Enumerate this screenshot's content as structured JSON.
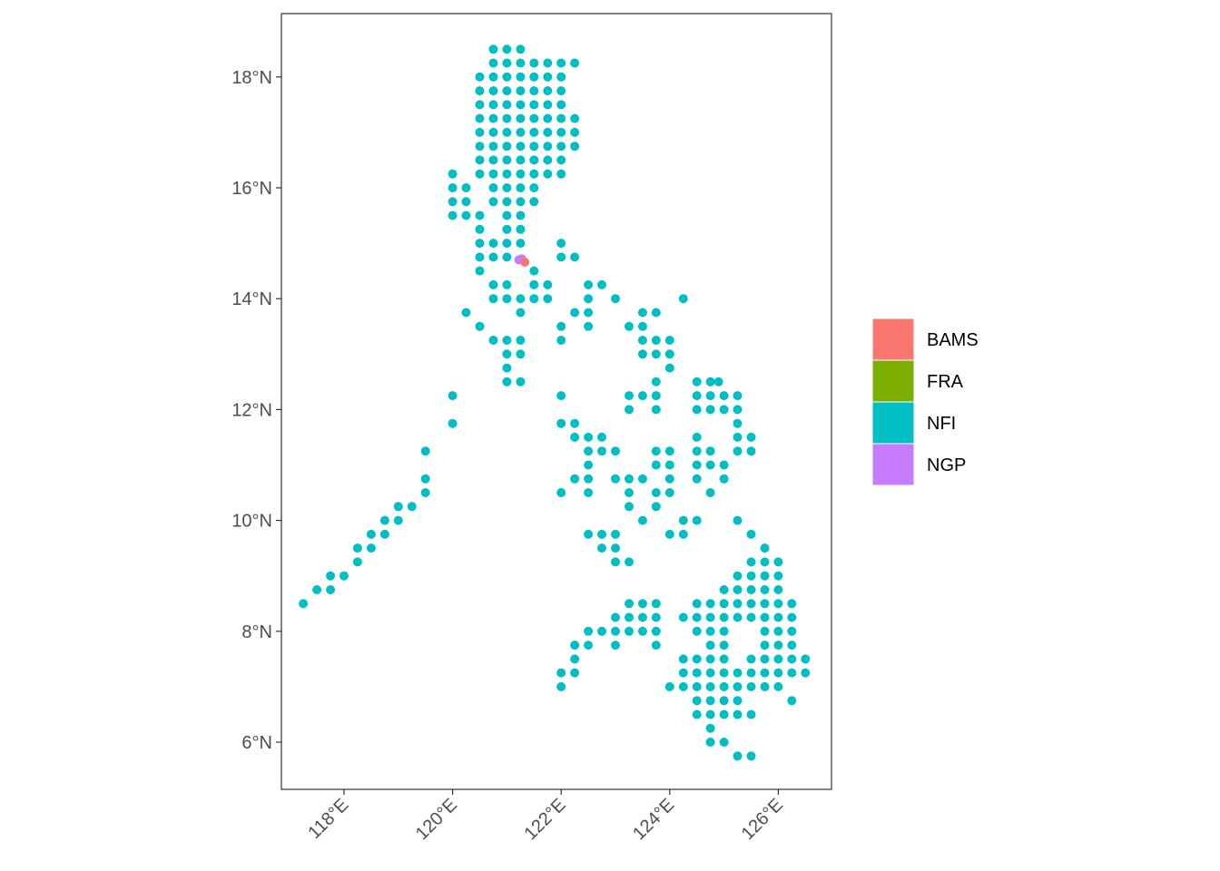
{
  "chart_data": {
    "type": "scatter",
    "title": "",
    "xlabel": "",
    "ylabel": "",
    "xlim": [
      116.8,
      127.0
    ],
    "ylim": [
      5.2,
      19.1
    ],
    "grid": false,
    "legend_position": "right",
    "x_ticks": [
      {
        "value": 118,
        "label": "118°E"
      },
      {
        "value": 120,
        "label": "120°E"
      },
      {
        "value": 122,
        "label": "122°E"
      },
      {
        "value": 124,
        "label": "124°E"
      },
      {
        "value": 126,
        "label": "126°E"
      }
    ],
    "y_ticks": [
      {
        "value": 6,
        "label": "6°N"
      },
      {
        "value": 8,
        "label": "8°N"
      },
      {
        "value": 10,
        "label": "10°N"
      },
      {
        "value": 12,
        "label": "12°N"
      },
      {
        "value": 14,
        "label": "14°N"
      },
      {
        "value": 16,
        "label": "16°N"
      },
      {
        "value": 18,
        "label": "18°N"
      }
    ],
    "legend": [
      {
        "label": "BAMS",
        "color": "#F8766D"
      },
      {
        "label": "FRA",
        "color": "#7CAE00"
      },
      {
        "label": "NFI",
        "color": "#00BFC4"
      },
      {
        "label": "NGP",
        "color": "#C77CFF"
      }
    ],
    "grid_points_note": "regular 0.25 degree grid of plot locations",
    "series": [
      {
        "name": "NFI",
        "color": "#00BFC4",
        "rows": [
          {
            "lat": 18.5,
            "lons": [
              120.75,
              121.0,
              121.25
            ]
          },
          {
            "lat": 18.25,
            "lons": [
              120.75,
              121.0,
              121.25,
              121.5,
              121.75,
              122.0,
              122.25
            ]
          },
          {
            "lat": 18.0,
            "lons": [
              120.5,
              120.75,
              121.0,
              121.25,
              121.5,
              121.75,
              122.0
            ]
          },
          {
            "lat": 17.75,
            "lons": [
              120.5,
              120.75,
              121.0,
              121.25,
              121.5,
              121.75,
              122.0
            ]
          },
          {
            "lat": 17.5,
            "lons": [
              120.5,
              120.75,
              121.0,
              121.25,
              121.5,
              121.75,
              122.0
            ]
          },
          {
            "lat": 17.25,
            "lons": [
              120.5,
              120.75,
              121.0,
              121.25,
              121.5,
              121.75,
              122.0,
              122.25
            ]
          },
          {
            "lat": 17.0,
            "lons": [
              120.5,
              120.75,
              121.0,
              121.25,
              121.5,
              121.75,
              122.0,
              122.25
            ]
          },
          {
            "lat": 16.75,
            "lons": [
              120.5,
              120.75,
              121.0,
              121.25,
              121.5,
              121.75,
              122.0,
              122.25
            ]
          },
          {
            "lat": 16.5,
            "lons": [
              120.5,
              120.75,
              121.0,
              121.25,
              121.5,
              121.75,
              122.0
            ]
          },
          {
            "lat": 16.25,
            "lons": [
              120.0,
              120.5,
              120.75,
              121.0,
              121.25,
              121.5,
              121.75,
              122.0
            ]
          },
          {
            "lat": 16.0,
            "lons": [
              120.0,
              120.25,
              120.75,
              121.0,
              121.25,
              121.5
            ]
          },
          {
            "lat": 15.75,
            "lons": [
              120.0,
              120.25,
              120.75,
              121.0,
              121.25,
              121.5
            ]
          },
          {
            "lat": 15.5,
            "lons": [
              120.0,
              120.25,
              120.5,
              121.0,
              121.25
            ]
          },
          {
            "lat": 15.25,
            "lons": [
              120.5,
              121.0,
              121.25
            ]
          },
          {
            "lat": 15.0,
            "lons": [
              120.5,
              120.75,
              121.0,
              121.25,
              122.0
            ]
          },
          {
            "lat": 14.75,
            "lons": [
              120.5,
              120.75,
              121.0,
              122.0,
              122.25
            ]
          },
          {
            "lat": 14.5,
            "lons": [
              120.5,
              121.5
            ]
          },
          {
            "lat": 14.25,
            "lons": [
              120.75,
              121.0,
              121.5,
              121.75,
              122.5,
              122.75
            ]
          },
          {
            "lat": 14.0,
            "lons": [
              120.75,
              121.0,
              121.25,
              121.5,
              121.75,
              122.5,
              123.0,
              124.25
            ]
          },
          {
            "lat": 13.75,
            "lons": [
              120.25,
              121.25,
              122.25,
              122.5,
              123.5,
              123.75
            ]
          },
          {
            "lat": 13.5,
            "lons": [
              120.5,
              122.0,
              122.5,
              123.25,
              123.5
            ]
          },
          {
            "lat": 13.25,
            "lons": [
              120.75,
              121.0,
              121.25,
              122.0,
              123.5,
              123.75,
              124.0
            ]
          },
          {
            "lat": 13.0,
            "lons": [
              121.0,
              121.25,
              123.5,
              123.75,
              124.0
            ]
          },
          {
            "lat": 12.75,
            "lons": [
              121.0,
              124.0
            ]
          },
          {
            "lat": 12.5,
            "lons": [
              121.0,
              121.25,
              123.75,
              124.5,
              124.75,
              124.9
            ]
          },
          {
            "lat": 12.25,
            "lons": [
              120.0,
              122.0,
              123.25,
              123.5,
              123.75,
              124.5,
              124.75,
              125.0,
              125.25
            ]
          },
          {
            "lat": 12.0,
            "lons": [
              123.25,
              123.75,
              124.5,
              124.75,
              125.0,
              125.25
            ]
          },
          {
            "lat": 11.75,
            "lons": [
              120.0,
              122.0,
              122.25,
              125.25
            ]
          },
          {
            "lat": 11.5,
            "lons": [
              122.25,
              122.5,
              122.75,
              124.5,
              125.25,
              125.5
            ]
          },
          {
            "lat": 11.25,
            "lons": [
              119.5,
              122.5,
              122.75,
              123.0,
              123.75,
              124.0,
              124.5,
              124.75,
              125.25,
              125.5
            ]
          },
          {
            "lat": 11.0,
            "lons": [
              122.5,
              123.75,
              124.0,
              124.5,
              124.75,
              125.0
            ]
          },
          {
            "lat": 10.75,
            "lons": [
              119.5,
              122.25,
              122.5,
              123.0,
              123.25,
              123.5,
              124.0,
              124.5,
              125.0
            ]
          },
          {
            "lat": 10.5,
            "lons": [
              119.5,
              122.0,
              122.5,
              123.25,
              123.75,
              124.0,
              124.75
            ]
          },
          {
            "lat": 10.25,
            "lons": [
              119.0,
              119.25,
              123.25,
              123.75
            ]
          },
          {
            "lat": 10.0,
            "lons": [
              118.75,
              119.0,
              123.5,
              124.25,
              124.5,
              125.25
            ]
          },
          {
            "lat": 9.75,
            "lons": [
              118.5,
              118.75,
              122.5,
              122.75,
              123.0,
              124.0,
              124.25,
              125.5
            ]
          },
          {
            "lat": 9.5,
            "lons": [
              118.25,
              118.5,
              122.75,
              123.0,
              125.75
            ]
          },
          {
            "lat": 9.25,
            "lons": [
              118.25,
              123.0,
              123.25,
              125.5,
              125.75,
              126.0
            ]
          },
          {
            "lat": 9.0,
            "lons": [
              117.75,
              118.0,
              125.25,
              125.5,
              125.75,
              126.0
            ]
          },
          {
            "lat": 8.75,
            "lons": [
              117.5,
              117.75,
              125.0,
              125.25,
              125.5,
              125.75,
              126.0
            ]
          },
          {
            "lat": 8.5,
            "lons": [
              117.25,
              123.25,
              123.5,
              123.75,
              124.5,
              124.75,
              125.0,
              125.25,
              125.5,
              125.75,
              126.0,
              126.25
            ]
          },
          {
            "lat": 8.25,
            "lons": [
              123.0,
              123.25,
              123.5,
              123.75,
              124.25,
              124.5,
              124.75,
              125.0,
              125.25,
              125.5,
              125.75,
              126.0,
              126.25
            ]
          },
          {
            "lat": 8.0,
            "lons": [
              122.5,
              122.75,
              123.0,
              123.25,
              123.5,
              123.75,
              124.5,
              124.75,
              125.0,
              125.75,
              126.0,
              126.25
            ]
          },
          {
            "lat": 7.75,
            "lons": [
              122.25,
              122.5,
              123.0,
              123.75,
              124.75,
              125.0,
              125.75,
              126.0,
              126.25
            ]
          },
          {
            "lat": 7.5,
            "lons": [
              122.25,
              124.25,
              124.5,
              124.75,
              125.0,
              125.5,
              125.75,
              126.0,
              126.25,
              126.5
            ]
          },
          {
            "lat": 7.25,
            "lons": [
              122.0,
              122.25,
              124.25,
              124.5,
              124.75,
              125.0,
              125.25,
              125.5,
              125.75,
              126.0,
              126.25,
              126.5
            ]
          },
          {
            "lat": 7.0,
            "lons": [
              122.0,
              124.0,
              124.25,
              124.5,
              124.75,
              125.0,
              125.25,
              125.5,
              125.75,
              126.0
            ]
          },
          {
            "lat": 6.75,
            "lons": [
              124.5,
              124.75,
              125.0,
              125.25,
              126.25
            ]
          },
          {
            "lat": 6.5,
            "lons": [
              124.5,
              124.75,
              125.0,
              125.25,
              125.5
            ]
          },
          {
            "lat": 6.25,
            "lons": [
              124.75
            ]
          },
          {
            "lat": 6.0,
            "lons": [
              124.75,
              125.0
            ]
          },
          {
            "lat": 5.75,
            "lons": [
              125.25,
              125.5
            ]
          }
        ]
      },
      {
        "name": "NGP",
        "color": "#C77CFF",
        "rows": [
          {
            "lat": 14.72,
            "lons": [
              121.27
            ]
          },
          {
            "lat": 14.7,
            "lons": [
              121.22
            ]
          }
        ]
      },
      {
        "name": "BAMS",
        "color": "#F8766D",
        "rows": [
          {
            "lat": 14.66,
            "lons": [
              121.33
            ]
          }
        ]
      }
    ]
  }
}
